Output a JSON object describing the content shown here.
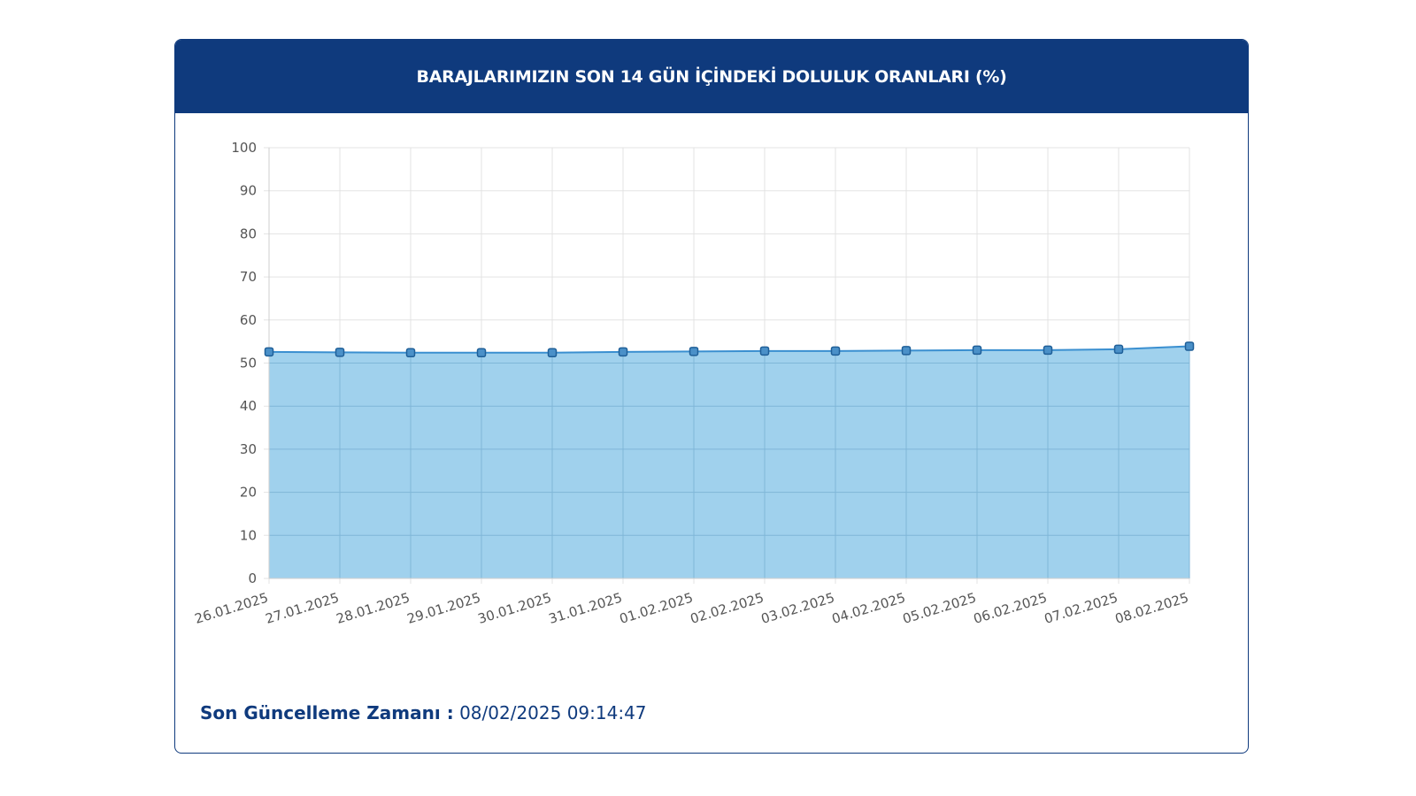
{
  "panel": {
    "title": "BARAJLARIMIZIN SON 14 GÜN İÇİNDEKİ DOLULUK ORANLARI (%)",
    "footer_label": "Son Güncelleme Zamanı :",
    "footer_value": "08/02/2025 09:14:47"
  },
  "colors": {
    "header_bg": "#0f3a7d",
    "area_fill": "#9bcfec",
    "line": "#3a8fd0",
    "grid": "#e3e3e3"
  },
  "chart_data": {
    "type": "area",
    "x": [
      "26.01.2025",
      "27.01.2025",
      "28.01.2025",
      "29.01.2025",
      "30.01.2025",
      "31.01.2025",
      "01.02.2025",
      "02.02.2025",
      "03.02.2025",
      "04.02.2025",
      "05.02.2025",
      "06.02.2025",
      "07.02.2025",
      "08.02.2025"
    ],
    "series": [
      {
        "values": [
          52.6,
          52.5,
          52.4,
          52.4,
          52.4,
          52.6,
          52.7,
          52.8,
          52.8,
          52.9,
          53.0,
          53.0,
          53.2,
          53.9
        ]
      }
    ],
    "ylim": [
      0,
      100
    ],
    "yticks": [
      0,
      10,
      20,
      30,
      40,
      50,
      60,
      70,
      80,
      90,
      100
    ],
    "grid": true,
    "legend": "none"
  }
}
